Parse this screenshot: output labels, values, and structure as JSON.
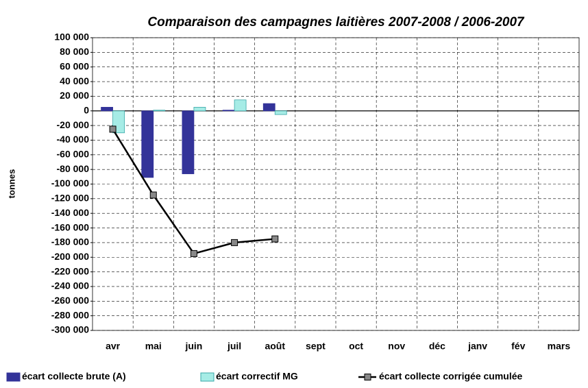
{
  "chart_data": {
    "type": "bar",
    "title": "Comparaison des campagnes laitières 2007-2008 / 2006-2007",
    "y_label": "tonnes",
    "categories": [
      "avr",
      "mai",
      "juin",
      "juil",
      "août",
      "sept",
      "oct",
      "nov",
      "déc",
      "janv",
      "fév",
      "mars"
    ],
    "series": [
      {
        "name": "écart collecte brute (A)",
        "type": "bar",
        "color": "#333399",
        "values": [
          5000,
          -91000,
          -86000,
          1000,
          10000,
          null,
          null,
          null,
          null,
          null,
          null,
          null
        ]
      },
      {
        "name": "écart correctif MG",
        "type": "bar",
        "color": "#a6ece6",
        "values": [
          -30000,
          1000,
          5000,
          15000,
          -5000,
          null,
          null,
          null,
          null,
          null,
          null,
          null
        ]
      },
      {
        "name": "écart collecte corrigée cumulée",
        "type": "line",
        "color": "#000000",
        "values": [
          -25000,
          -115000,
          -195000,
          -180000,
          -175000,
          null,
          null,
          null,
          null,
          null,
          null,
          null
        ]
      }
    ],
    "ylim": [
      -300000,
      100000
    ],
    "yticks": [
      {
        "value": 100000,
        "label": "100 000"
      },
      {
        "value": 80000,
        "label": "80 000"
      },
      {
        "value": 60000,
        "label": "60 000"
      },
      {
        "value": 40000,
        "label": "40 000"
      },
      {
        "value": 20000,
        "label": "20 000"
      },
      0,
      {
        "value": -20000,
        "label": "-20 000"
      },
      {
        "value": -40000,
        "label": "-40 000"
      },
      {
        "value": -60000,
        "label": "-60 000"
      },
      {
        "value": -80000,
        "label": "-80 000"
      },
      {
        "value": -100000,
        "label": "-100 000"
      },
      {
        "value": -120000,
        "label": "-120 000"
      },
      {
        "value": -140000,
        "label": "-140 000"
      },
      {
        "value": -160000,
        "label": "-160 000"
      },
      {
        "value": -180000,
        "label": "-180 000"
      },
      {
        "value": -200000,
        "label": "-200 000"
      },
      {
        "value": -220000,
        "label": "-220 000"
      },
      {
        "value": -240000,
        "label": "-240 000"
      },
      {
        "value": -260000,
        "label": "-260 000"
      },
      {
        "value": -280000,
        "label": "-280 000"
      },
      {
        "value": -300000,
        "label": "-300 000"
      }
    ],
    "grid": true,
    "legend": "bottom"
  }
}
